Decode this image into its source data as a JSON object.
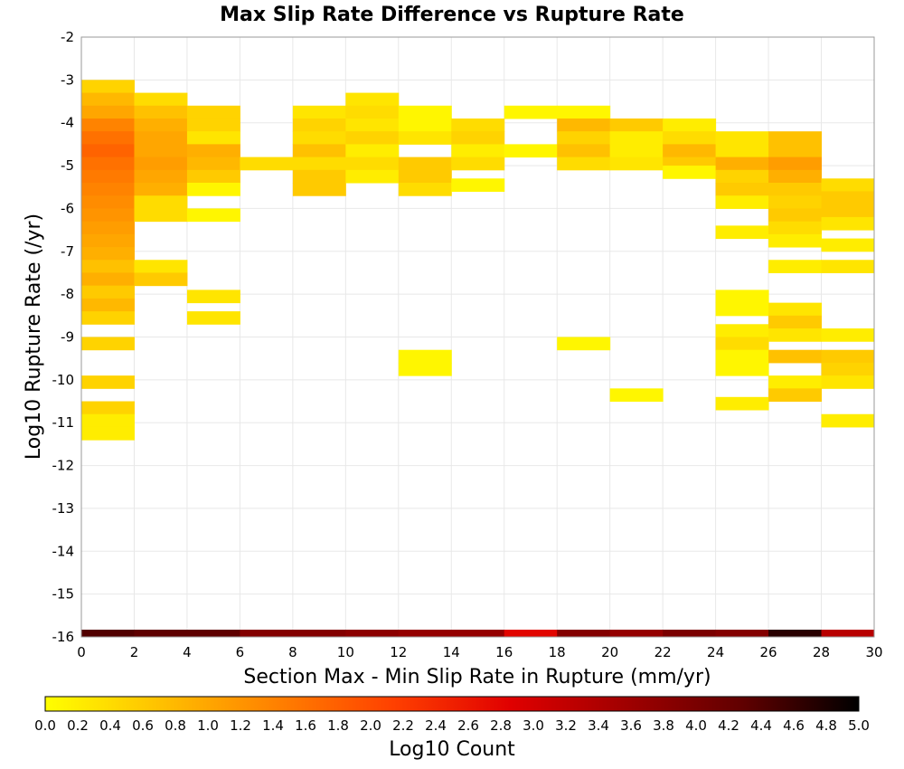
{
  "chart_data": {
    "type": "heatmap",
    "title": "Max Slip Rate Difference vs Rupture Rate",
    "xlabel": "Section Max - Min Slip Rate in Rupture (mm/yr)",
    "ylabel": "Log10 Rupture Rate (/yr)",
    "xlim": [
      0,
      30
    ],
    "ylim": [
      -16,
      -2
    ],
    "x_ticks": [
      "0",
      "2",
      "4",
      "6",
      "8",
      "10",
      "12",
      "14",
      "16",
      "18",
      "20",
      "22",
      "24",
      "26",
      "28",
      "30"
    ],
    "y_ticks": [
      "-2",
      "-3",
      "-4",
      "-5",
      "-6",
      "-7",
      "-8",
      "-9",
      "-10",
      "-11",
      "-12",
      "-13",
      "-14",
      "-15",
      "-16"
    ],
    "x_bin_width": 2,
    "y_bin_height": 0.3,
    "grid": true,
    "colorbar": {
      "label": "Log10 Count",
      "range": [
        0.0,
        5.0
      ],
      "ticks": [
        "0.0",
        "0.2",
        "0.4",
        "0.6",
        "0.8",
        "1.0",
        "1.2",
        "1.4",
        "1.6",
        "1.8",
        "2.0",
        "2.2",
        "2.4",
        "2.6",
        "2.8",
        "3.0",
        "3.2",
        "3.4",
        "3.6",
        "3.8",
        "4.0",
        "4.2",
        "4.4",
        "4.6",
        "4.8",
        "5.0"
      ],
      "colors": [
        "#ffff00",
        "#ffc000",
        "#ff8000",
        "#ff4000",
        "#e00000",
        "#a00000",
        "#600000",
        "#000000"
      ],
      "placement": "bottom"
    },
    "marginal_counts": [
      {
        "x": 1,
        "value": 4.4
      },
      {
        "x": 3,
        "value": 4.3
      },
      {
        "x": 5,
        "value": 4.3
      },
      {
        "x": 7,
        "value": 3.9
      },
      {
        "x": 9,
        "value": 3.9
      },
      {
        "x": 11,
        "value": 3.8
      },
      {
        "x": 13,
        "value": 3.7
      },
      {
        "x": 15,
        "value": 3.7
      },
      {
        "x": 17,
        "value": 2.8
      },
      {
        "x": 19,
        "value": 3.9
      },
      {
        "x": 21,
        "value": 3.7
      },
      {
        "x": 23,
        "value": 4.0
      },
      {
        "x": 25,
        "value": 3.9
      },
      {
        "x": 27,
        "value": 4.7
      },
      {
        "x": 29,
        "value": 3.3
      }
    ],
    "cells": [
      {
        "x": 1,
        "y": -3.15,
        "value": 0.5
      },
      {
        "x": 1,
        "y": -3.45,
        "value": 0.8
      },
      {
        "x": 1,
        "y": -3.75,
        "value": 1.0
      },
      {
        "x": 1,
        "y": -4.05,
        "value": 1.4
      },
      {
        "x": 1,
        "y": -4.35,
        "value": 1.6
      },
      {
        "x": 1,
        "y": -4.65,
        "value": 1.75
      },
      {
        "x": 1,
        "y": -4.95,
        "value": 1.6
      },
      {
        "x": 1,
        "y": -5.25,
        "value": 1.5
      },
      {
        "x": 1,
        "y": -5.55,
        "value": 1.4
      },
      {
        "x": 1,
        "y": -5.85,
        "value": 1.3
      },
      {
        "x": 1,
        "y": -6.15,
        "value": 1.2
      },
      {
        "x": 1,
        "y": -6.45,
        "value": 1.1
      },
      {
        "x": 1,
        "y": -6.75,
        "value": 1.0
      },
      {
        "x": 1,
        "y": -7.05,
        "value": 0.9
      },
      {
        "x": 1,
        "y": -7.35,
        "value": 0.7
      },
      {
        "x": 1,
        "y": -7.65,
        "value": 0.9
      },
      {
        "x": 1,
        "y": -7.95,
        "value": 0.6
      },
      {
        "x": 1,
        "y": -8.25,
        "value": 0.8
      },
      {
        "x": 1,
        "y": -8.55,
        "value": 0.5
      },
      {
        "x": 1,
        "y": -9.15,
        "value": 0.5
      },
      {
        "x": 1,
        "y": -10.05,
        "value": 0.5
      },
      {
        "x": 1,
        "y": -10.65,
        "value": 0.5
      },
      {
        "x": 1,
        "y": -10.95,
        "value": 0.2
      },
      {
        "x": 1,
        "y": -11.25,
        "value": 0.2
      },
      {
        "x": 3,
        "y": -3.45,
        "value": 0.4
      },
      {
        "x": 3,
        "y": -3.75,
        "value": 0.7
      },
      {
        "x": 3,
        "y": -4.05,
        "value": 0.9
      },
      {
        "x": 3,
        "y": -4.35,
        "value": 1.0
      },
      {
        "x": 3,
        "y": -4.65,
        "value": 1.0
      },
      {
        "x": 3,
        "y": -4.95,
        "value": 1.1
      },
      {
        "x": 3,
        "y": -5.25,
        "value": 1.0
      },
      {
        "x": 3,
        "y": -5.55,
        "value": 0.9
      },
      {
        "x": 3,
        "y": -5.85,
        "value": 0.4
      },
      {
        "x": 3,
        "y": -6.15,
        "value": 0.4
      },
      {
        "x": 3,
        "y": -7.35,
        "value": 0.3
      },
      {
        "x": 3,
        "y": -7.65,
        "value": 0.6
      },
      {
        "x": 5,
        "y": -3.75,
        "value": 0.5
      },
      {
        "x": 5,
        "y": -4.05,
        "value": 0.5
      },
      {
        "x": 5,
        "y": -4.35,
        "value": 0.3
      },
      {
        "x": 5,
        "y": -4.65,
        "value": 0.9
      },
      {
        "x": 5,
        "y": -4.95,
        "value": 0.8
      },
      {
        "x": 5,
        "y": -5.25,
        "value": 0.6
      },
      {
        "x": 5,
        "y": -5.55,
        "value": 0.1
      },
      {
        "x": 5,
        "y": -6.15,
        "value": 0.1
      },
      {
        "x": 5,
        "y": -8.05,
        "value": 0.3
      },
      {
        "x": 5,
        "y": -8.55,
        "value": 0.3
      },
      {
        "x": 7,
        "y": -4.95,
        "value": 0.4
      },
      {
        "x": 9,
        "y": -3.75,
        "value": 0.3
      },
      {
        "x": 9,
        "y": -4.05,
        "value": 0.5
      },
      {
        "x": 9,
        "y": -4.35,
        "value": 0.4
      },
      {
        "x": 9,
        "y": -4.65,
        "value": 0.7
      },
      {
        "x": 9,
        "y": -4.95,
        "value": 0.4
      },
      {
        "x": 9,
        "y": -5.25,
        "value": 0.6
      },
      {
        "x": 9,
        "y": -5.55,
        "value": 0.6
      },
      {
        "x": 11,
        "y": -3.45,
        "value": 0.3
      },
      {
        "x": 11,
        "y": -3.75,
        "value": 0.4
      },
      {
        "x": 11,
        "y": -4.05,
        "value": 0.3
      },
      {
        "x": 11,
        "y": -4.35,
        "value": 0.5
      },
      {
        "x": 11,
        "y": -4.65,
        "value": 0.2
      },
      {
        "x": 11,
        "y": -4.95,
        "value": 0.4
      },
      {
        "x": 11,
        "y": -5.25,
        "value": 0.2
      },
      {
        "x": 13,
        "y": -3.75,
        "value": 0.1
      },
      {
        "x": 13,
        "y": -4.05,
        "value": 0.1
      },
      {
        "x": 13,
        "y": -4.35,
        "value": 0.3
      },
      {
        "x": 13,
        "y": -4.95,
        "value": 0.6
      },
      {
        "x": 13,
        "y": -5.25,
        "value": 0.6
      },
      {
        "x": 13,
        "y": -5.55,
        "value": 0.4
      },
      {
        "x": 13,
        "y": -9.45,
        "value": 0.1
      },
      {
        "x": 13,
        "y": -9.75,
        "value": 0.1
      },
      {
        "x": 15,
        "y": -4.05,
        "value": 0.4
      },
      {
        "x": 15,
        "y": -4.35,
        "value": 0.5
      },
      {
        "x": 15,
        "y": -4.65,
        "value": 0.2
      },
      {
        "x": 15,
        "y": -4.95,
        "value": 0.4
      },
      {
        "x": 15,
        "y": -5.45,
        "value": 0.1
      },
      {
        "x": 17,
        "y": -3.75,
        "value": 0.1
      },
      {
        "x": 17,
        "y": -4.65,
        "value": 0.1
      },
      {
        "x": 19,
        "y": -3.75,
        "value": 0.1
      },
      {
        "x": 19,
        "y": -4.05,
        "value": 0.8
      },
      {
        "x": 19,
        "y": -4.35,
        "value": 0.5
      },
      {
        "x": 19,
        "y": -4.65,
        "value": 0.7
      },
      {
        "x": 19,
        "y": -4.95,
        "value": 0.4
      },
      {
        "x": 19,
        "y": -9.15,
        "value": 0.1
      },
      {
        "x": 21,
        "y": -4.05,
        "value": 0.6
      },
      {
        "x": 21,
        "y": -4.35,
        "value": 0.2
      },
      {
        "x": 21,
        "y": -4.65,
        "value": 0.2
      },
      {
        "x": 21,
        "y": -4.95,
        "value": 0.3
      },
      {
        "x": 21,
        "y": -10.35,
        "value": 0.1
      },
      {
        "x": 23,
        "y": -4.05,
        "value": 0.2
      },
      {
        "x": 23,
        "y": -4.35,
        "value": 0.4
      },
      {
        "x": 23,
        "y": -4.65,
        "value": 0.8
      },
      {
        "x": 23,
        "y": -4.95,
        "value": 0.6
      },
      {
        "x": 23,
        "y": -5.15,
        "value": 0.1
      },
      {
        "x": 25,
        "y": -4.35,
        "value": 0.3
      },
      {
        "x": 25,
        "y": -4.65,
        "value": 0.3
      },
      {
        "x": 25,
        "y": -4.95,
        "value": 0.9
      },
      {
        "x": 25,
        "y": -5.25,
        "value": 0.5
      },
      {
        "x": 25,
        "y": -5.55,
        "value": 0.6
      },
      {
        "x": 25,
        "y": -5.85,
        "value": 0.2
      },
      {
        "x": 25,
        "y": -6.55,
        "value": 0.2
      },
      {
        "x": 25,
        "y": -8.05,
        "value": 0.1
      },
      {
        "x": 25,
        "y": -8.35,
        "value": 0.1
      },
      {
        "x": 25,
        "y": -8.85,
        "value": 0.2
      },
      {
        "x": 25,
        "y": -9.15,
        "value": 0.4
      },
      {
        "x": 25,
        "y": -9.45,
        "value": 0.1
      },
      {
        "x": 25,
        "y": -9.75,
        "value": 0.1
      },
      {
        "x": 25,
        "y": -10.55,
        "value": 0.2
      },
      {
        "x": 27,
        "y": -4.35,
        "value": 0.7
      },
      {
        "x": 27,
        "y": -4.65,
        "value": 0.7
      },
      {
        "x": 27,
        "y": -4.95,
        "value": 1.1
      },
      {
        "x": 27,
        "y": -5.25,
        "value": 0.9
      },
      {
        "x": 27,
        "y": -5.55,
        "value": 0.6
      },
      {
        "x": 27,
        "y": -5.85,
        "value": 0.5
      },
      {
        "x": 27,
        "y": -6.15,
        "value": 0.6
      },
      {
        "x": 27,
        "y": -6.45,
        "value": 0.4
      },
      {
        "x": 27,
        "y": -6.75,
        "value": 0.2
      },
      {
        "x": 27,
        "y": -7.35,
        "value": 0.2
      },
      {
        "x": 27,
        "y": -8.35,
        "value": 0.3
      },
      {
        "x": 27,
        "y": -8.65,
        "value": 0.6
      },
      {
        "x": 27,
        "y": -8.95,
        "value": 0.3
      },
      {
        "x": 27,
        "y": -9.45,
        "value": 0.7
      },
      {
        "x": 27,
        "y": -10.05,
        "value": 0.2
      },
      {
        "x": 27,
        "y": -10.35,
        "value": 0.6
      },
      {
        "x": 29,
        "y": -5.45,
        "value": 0.4
      },
      {
        "x": 29,
        "y": -5.75,
        "value": 0.6
      },
      {
        "x": 29,
        "y": -6.05,
        "value": 0.6
      },
      {
        "x": 29,
        "y": -6.35,
        "value": 0.3
      },
      {
        "x": 29,
        "y": -6.85,
        "value": 0.2
      },
      {
        "x": 29,
        "y": -7.35,
        "value": 0.3
      },
      {
        "x": 29,
        "y": -8.95,
        "value": 0.2
      },
      {
        "x": 29,
        "y": -9.45,
        "value": 0.6
      },
      {
        "x": 29,
        "y": -9.75,
        "value": 0.5
      },
      {
        "x": 29,
        "y": -10.05,
        "value": 0.3
      },
      {
        "x": 29,
        "y": -10.95,
        "value": 0.2
      }
    ]
  }
}
